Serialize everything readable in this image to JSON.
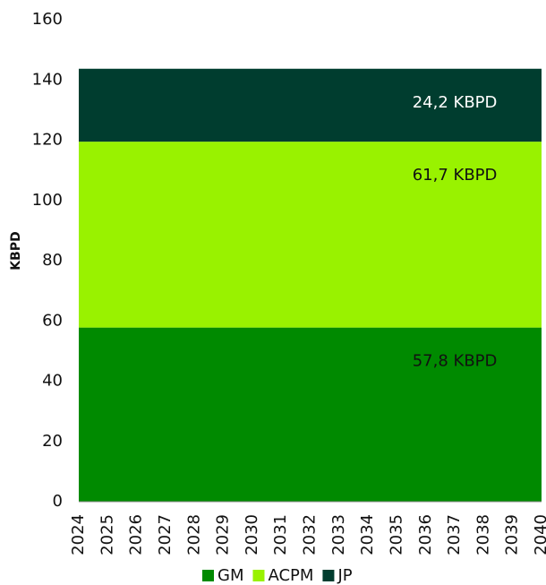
{
  "chart_data": {
    "type": "stacked_area",
    "ylabel": "KBPD",
    "categories": [
      "2024",
      "2025",
      "2026",
      "2027",
      "2028",
      "2029",
      "2030",
      "2031",
      "2032",
      "2033",
      "2034",
      "2035",
      "2036",
      "2037",
      "2038",
      "2039",
      "2040"
    ],
    "series": [
      {
        "name": "GM",
        "color": "#008a00",
        "values": [
          57.8,
          57.8,
          57.8,
          57.8,
          57.8,
          57.8,
          57.8,
          57.8,
          57.8,
          57.8,
          57.8,
          57.8,
          57.8,
          57.8,
          57.8,
          57.8,
          57.8
        ],
        "value_labels": [
          null,
          null,
          null,
          null,
          null,
          null,
          null,
          null,
          null,
          null,
          null,
          null,
          null,
          "57,8 KBPD",
          null,
          null,
          null
        ]
      },
      {
        "name": "ACPM",
        "color": "#99f200",
        "values": [
          61.7,
          61.7,
          61.7,
          61.7,
          61.7,
          61.7,
          61.7,
          61.7,
          61.7,
          61.7,
          61.7,
          61.7,
          61.7,
          61.7,
          61.7,
          61.7,
          61.7
        ],
        "value_labels": [
          null,
          null,
          null,
          null,
          null,
          null,
          null,
          null,
          null,
          null,
          null,
          null,
          null,
          "61,7 KBPD",
          null,
          null,
          null
        ]
      },
      {
        "name": "JP",
        "color": "#003d2f",
        "values": [
          24.2,
          24.2,
          24.2,
          24.2,
          24.2,
          24.2,
          24.2,
          24.2,
          24.2,
          24.2,
          24.2,
          24.2,
          24.2,
          24.2,
          24.2,
          24.2,
          24.2
        ],
        "value_labels": [
          null,
          null,
          null,
          null,
          null,
          null,
          null,
          null,
          null,
          null,
          null,
          null,
          null,
          "24,2 KBPD",
          null,
          null,
          null
        ]
      }
    ],
    "ylim": [
      0,
      160
    ],
    "yticks": [
      0,
      20,
      40,
      60,
      80,
      100,
      120,
      140,
      160
    ],
    "grid": false
  }
}
